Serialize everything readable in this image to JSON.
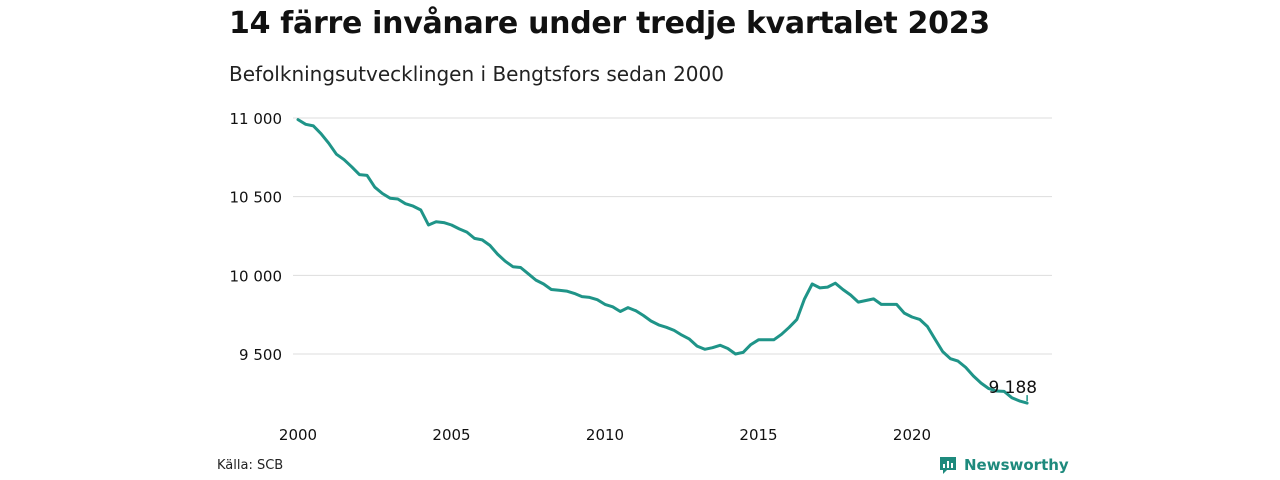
{
  "header": {
    "title": "14 färre invånare under tredje kvartalet 2023",
    "subtitle": "Befolkningsutvecklingen i Bengtsfors sedan 2000"
  },
  "footer": {
    "source": "Källa: SCB",
    "brand": "Newsworthy"
  },
  "colors": {
    "line": "#1f9488",
    "grid": "#dddddd",
    "brand": "#1e8a7d"
  },
  "chart_data": {
    "type": "line",
    "title": "14 färre invånare under tredje kvartalet 2023",
    "subtitle": "Befolkningsutvecklingen i Bengtsfors sedan 2000",
    "xlabel": "",
    "ylabel": "",
    "xlim": [
      2000,
      2023.75
    ],
    "ylim": [
      9150,
      11050
    ],
    "grid": true,
    "legend": "none",
    "y_ticks": [
      9500,
      10000,
      10500,
      11000
    ],
    "y_tick_labels": [
      "9 500",
      "10 000",
      "10 500",
      "11 000"
    ],
    "x_ticks": [
      2000,
      2005,
      2010,
      2015,
      2020
    ],
    "x_tick_labels": [
      "2000",
      "2005",
      "2010",
      "2015",
      "2020"
    ],
    "end_label": "9 188",
    "series": [
      {
        "x": [
          2000.0,
          2000.25,
          2000.5,
          2000.75,
          2001.0,
          2001.25,
          2001.5,
          2001.75,
          2002.0,
          2002.25,
          2002.5,
          2002.75,
          2003.0,
          2003.25,
          2003.5,
          2003.75,
          2004.0,
          2004.25,
          2004.5,
          2004.75,
          2005.0,
          2005.25,
          2005.5,
          2005.75,
          2006.0,
          2006.25,
          2006.5,
          2006.75,
          2007.0,
          2007.25,
          2007.5,
          2007.75,
          2008.0,
          2008.25,
          2008.5,
          2008.75,
          2009.0,
          2009.25,
          2009.5,
          2009.75,
          2010.0,
          2010.25,
          2010.5,
          2010.75,
          2011.0,
          2011.25,
          2011.5,
          2011.75,
          2012.0,
          2012.25,
          2012.5,
          2012.75,
          2013.0,
          2013.25,
          2013.5,
          2013.75,
          2014.0,
          2014.25,
          2014.5,
          2014.75,
          2015.0,
          2015.25,
          2015.5,
          2015.75,
          2016.0,
          2016.25,
          2016.5,
          2016.75,
          2017.0,
          2017.25,
          2017.5,
          2017.75,
          2018.0,
          2018.25,
          2018.5,
          2018.75,
          2019.0,
          2019.25,
          2019.5,
          2019.75,
          2020.0,
          2020.25,
          2020.5,
          2020.75,
          2021.0,
          2021.25,
          2021.5,
          2021.75,
          2022.0,
          2022.25,
          2022.5,
          2022.75,
          2023.0,
          2023.25,
          2023.5,
          2023.75
        ],
        "values": [
          10990,
          10960,
          10950,
          10900,
          10840,
          10770,
          10735,
          10690,
          10640,
          10635,
          10560,
          10520,
          10490,
          10485,
          10455,
          10440,
          10415,
          10320,
          10340,
          10335,
          10320,
          10295,
          10275,
          10235,
          10225,
          10190,
          10135,
          10090,
          10055,
          10050,
          10010,
          9970,
          9945,
          9910,
          9905,
          9900,
          9885,
          9865,
          9860,
          9845,
          9815,
          9800,
          9770,
          9795,
          9775,
          9745,
          9710,
          9685,
          9670,
          9650,
          9620,
          9595,
          9550,
          9530,
          9540,
          9555,
          9535,
          9500,
          9510,
          9560,
          9590,
          9590,
          9590,
          9625,
          9670,
          9720,
          9850,
          9945,
          9920,
          9925,
          9950,
          9910,
          9875,
          9830,
          9840,
          9850,
          9815,
          9815,
          9815,
          9760,
          9735,
          9720,
          9675,
          9595,
          9515,
          9470,
          9455,
          9415,
          9360,
          9315,
          9280,
          9265,
          9262,
          9222,
          9202,
          9188
        ]
      }
    ]
  }
}
